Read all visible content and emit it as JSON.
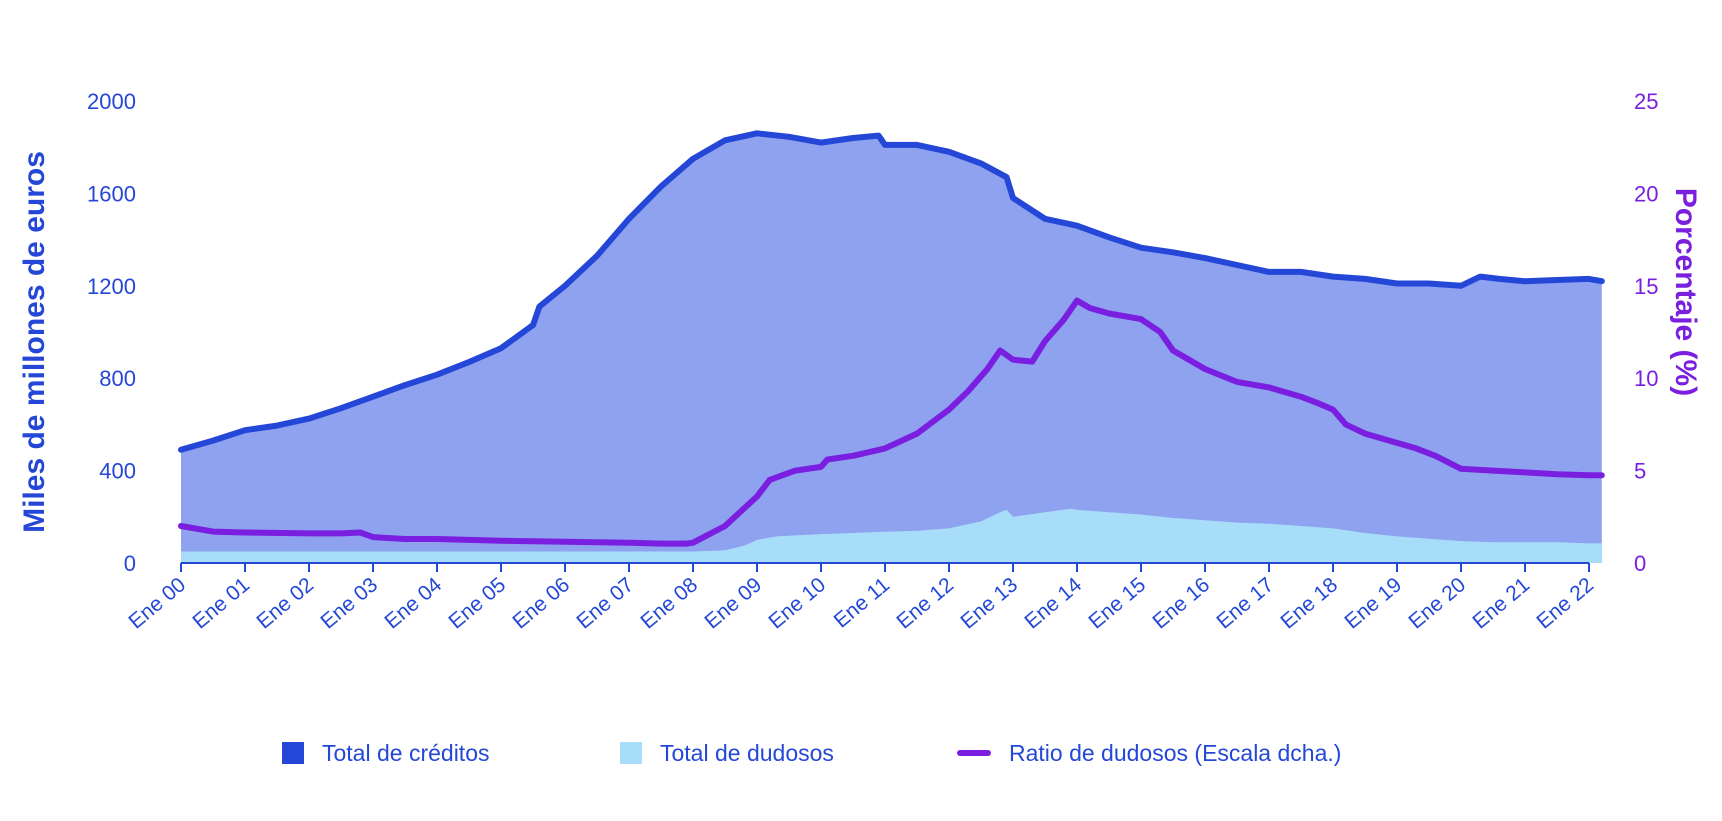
{
  "chart_data": {
    "type": "area",
    "title": "",
    "x": [
      "Ene 00",
      "Ene 01",
      "Ene 02",
      "Ene 03",
      "Ene 04",
      "Ene 05",
      "Ene 06",
      "Ene 07",
      "Ene 08",
      "Ene 09",
      "Ene 10",
      "Ene 11",
      "Ene 12",
      "Ene 13",
      "Ene 14",
      "Ene 15",
      "Ene 16",
      "Ene 17",
      "Ene 18",
      "Ene 19",
      "Ene 20",
      "Ene 21",
      "Ene 22"
    ],
    "ylabel_left": "Miles de millones de euros",
    "ylabel_right": "Porcentaje (%)",
    "ylim_left": [
      0,
      2000
    ],
    "ylim_right": [
      0,
      25
    ],
    "yticks_left": [
      "0",
      "400",
      "800",
      "1200",
      "1600",
      "2000"
    ],
    "yticks_right": [
      "0",
      "5",
      "10",
      "15",
      "20",
      "25"
    ],
    "grid": false,
    "legend_position": "bottom",
    "series": [
      {
        "name": "Total de créditos",
        "kind": "area",
        "axis": "left",
        "color": "#2447d8",
        "fill": "#8ea2f0",
        "points": [
          [
            0.0,
            490
          ],
          [
            0.5,
            530
          ],
          [
            1.0,
            575
          ],
          [
            1.5,
            595
          ],
          [
            2.0,
            625
          ],
          [
            2.5,
            670
          ],
          [
            3.0,
            720
          ],
          [
            3.5,
            770
          ],
          [
            4.0,
            815
          ],
          [
            4.5,
            870
          ],
          [
            5.0,
            930
          ],
          [
            5.5,
            1030
          ],
          [
            5.6,
            1110
          ],
          [
            6.0,
            1200
          ],
          [
            6.5,
            1330
          ],
          [
            7.0,
            1490
          ],
          [
            7.5,
            1630
          ],
          [
            8.0,
            1750
          ],
          [
            8.5,
            1830
          ],
          [
            9.0,
            1860
          ],
          [
            9.5,
            1845
          ],
          [
            10.0,
            1820
          ],
          [
            10.5,
            1840
          ],
          [
            10.9,
            1850
          ],
          [
            11.0,
            1810
          ],
          [
            11.5,
            1810
          ],
          [
            12.0,
            1780
          ],
          [
            12.5,
            1730
          ],
          [
            12.7,
            1700
          ],
          [
            12.9,
            1670
          ],
          [
            13.0,
            1580
          ],
          [
            13.5,
            1490
          ],
          [
            14.0,
            1460
          ],
          [
            14.5,
            1410
          ],
          [
            15.0,
            1365
          ],
          [
            15.5,
            1345
          ],
          [
            16.0,
            1320
          ],
          [
            16.5,
            1290
          ],
          [
            17.0,
            1260
          ],
          [
            17.5,
            1260
          ],
          [
            18.0,
            1240
          ],
          [
            18.5,
            1230
          ],
          [
            19.0,
            1210
          ],
          [
            19.5,
            1210
          ],
          [
            20.0,
            1200
          ],
          [
            20.3,
            1240
          ],
          [
            20.6,
            1230
          ],
          [
            21.0,
            1220
          ],
          [
            21.5,
            1225
          ],
          [
            22.0,
            1230
          ],
          [
            22.2,
            1220
          ]
        ]
      },
      {
        "name": "Total de dudosos",
        "kind": "area",
        "axis": "left",
        "color": "#a8ddfa",
        "fill": "#a8ddfa",
        "points": [
          [
            0.0,
            50
          ],
          [
            1.0,
            50
          ],
          [
            2.0,
            50
          ],
          [
            3.0,
            50
          ],
          [
            4.0,
            50
          ],
          [
            5.0,
            50
          ],
          [
            6.0,
            50
          ],
          [
            7.0,
            50
          ],
          [
            8.0,
            50
          ],
          [
            8.5,
            55
          ],
          [
            8.8,
            75
          ],
          [
            9.0,
            100
          ],
          [
            9.3,
            115
          ],
          [
            10.0,
            125
          ],
          [
            10.5,
            130
          ],
          [
            11.0,
            135
          ],
          [
            11.5,
            140
          ],
          [
            12.0,
            150
          ],
          [
            12.5,
            180
          ],
          [
            12.8,
            220
          ],
          [
            12.9,
            230
          ],
          [
            13.0,
            200
          ],
          [
            13.5,
            220
          ],
          [
            13.9,
            235
          ],
          [
            14.0,
            230
          ],
          [
            14.5,
            220
          ],
          [
            15.0,
            210
          ],
          [
            15.5,
            195
          ],
          [
            16.0,
            185
          ],
          [
            16.5,
            175
          ],
          [
            17.0,
            170
          ],
          [
            17.5,
            160
          ],
          [
            18.0,
            150
          ],
          [
            18.5,
            130
          ],
          [
            19.0,
            115
          ],
          [
            19.5,
            105
          ],
          [
            20.0,
            95
          ],
          [
            20.5,
            90
          ],
          [
            21.0,
            90
          ],
          [
            21.5,
            90
          ],
          [
            22.0,
            85
          ],
          [
            22.2,
            85
          ]
        ]
      },
      {
        "name": "Ratio de dudosos (Escala dcha.)",
        "kind": "line",
        "axis": "right",
        "color": "#7a1fe0",
        "points": [
          [
            0.0,
            2.0
          ],
          [
            0.5,
            1.7
          ],
          [
            1.0,
            1.65
          ],
          [
            2.0,
            1.6
          ],
          [
            2.5,
            1.6
          ],
          [
            2.8,
            1.65
          ],
          [
            3.0,
            1.4
          ],
          [
            3.5,
            1.3
          ],
          [
            4.0,
            1.3
          ],
          [
            4.5,
            1.25
          ],
          [
            5.0,
            1.2
          ],
          [
            6.0,
            1.15
          ],
          [
            7.0,
            1.1
          ],
          [
            7.5,
            1.05
          ],
          [
            7.9,
            1.05
          ],
          [
            8.0,
            1.1
          ],
          [
            8.5,
            2.0
          ],
          [
            9.0,
            3.6
          ],
          [
            9.2,
            4.5
          ],
          [
            9.6,
            5.0
          ],
          [
            10.0,
            5.2
          ],
          [
            10.1,
            5.6
          ],
          [
            10.5,
            5.8
          ],
          [
            11.0,
            6.2
          ],
          [
            11.5,
            7.0
          ],
          [
            12.0,
            8.3
          ],
          [
            12.3,
            9.3
          ],
          [
            12.6,
            10.5
          ],
          [
            12.8,
            11.5
          ],
          [
            13.0,
            11.0
          ],
          [
            13.3,
            10.9
          ],
          [
            13.5,
            12.0
          ],
          [
            13.8,
            13.2
          ],
          [
            14.0,
            14.2
          ],
          [
            14.2,
            13.8
          ],
          [
            14.5,
            13.5
          ],
          [
            15.0,
            13.2
          ],
          [
            15.3,
            12.5
          ],
          [
            15.5,
            11.5
          ],
          [
            16.0,
            10.5
          ],
          [
            16.5,
            9.8
          ],
          [
            17.0,
            9.5
          ],
          [
            17.5,
            9.0
          ],
          [
            17.8,
            8.6
          ],
          [
            18.0,
            8.3
          ],
          [
            18.2,
            7.5
          ],
          [
            18.5,
            7.0
          ],
          [
            19.0,
            6.5
          ],
          [
            19.3,
            6.2
          ],
          [
            19.6,
            5.8
          ],
          [
            20.0,
            5.1
          ],
          [
            20.5,
            5.0
          ],
          [
            21.0,
            4.9
          ],
          [
            21.5,
            4.8
          ],
          [
            22.0,
            4.75
          ],
          [
            22.2,
            4.75
          ]
        ]
      }
    ]
  },
  "legend": [
    {
      "label": "Total de créditos",
      "color": "#2447d8",
      "kind": "swatch"
    },
    {
      "label": "Total de dudosos",
      "color": "#a8ddfa",
      "kind": "swatch"
    },
    {
      "label": "Ratio de dudosos (Escala dcha.)",
      "color": "#7a1fe0",
      "kind": "line"
    }
  ]
}
